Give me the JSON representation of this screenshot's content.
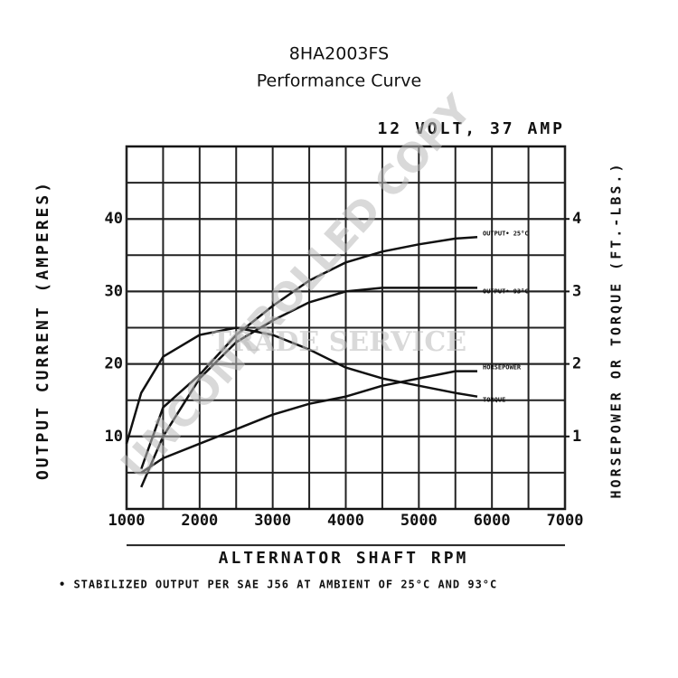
{
  "chart_data": {
    "type": "line",
    "title": "8HA2003FS",
    "subtitle": "Performance Curve",
    "rating": "12 VOLT, 37 AMP",
    "ylabel": "OUTPUT CURRENT (AMPERES)",
    "y2label": "HORSEPOWER OR TORQUE (FT.-LBS.)",
    "xlabel": "ALTERNATOR SHAFT RPM",
    "footnote": "• STABILIZED OUTPUT PER SAE J56 AT AMBIENT OF 25°C AND 93°C",
    "watermark": "UNCONTROLLED COPY",
    "watermark_logo": "TRADE SERVICE",
    "xlim": [
      1000,
      7000
    ],
    "xticks": [
      1000,
      2000,
      3000,
      4000,
      5000,
      6000,
      7000
    ],
    "ylim": [
      0,
      50
    ],
    "yticks": [
      10,
      20,
      30,
      40
    ],
    "y2lim": [
      0,
      5
    ],
    "y2ticks": [
      1,
      2,
      3,
      4
    ],
    "grid": true,
    "series": [
      {
        "name": "OUTPUT• 25°C",
        "color": "#111",
        "x": [
          1200,
          1500,
          2000,
          2500,
          3000,
          3500,
          4000,
          4500,
          5000,
          5500,
          5800
        ],
        "values": [
          5.5,
          14,
          18.5,
          24,
          28,
          31.5,
          34,
          35.5,
          36.5,
          37.3,
          37.5
        ]
      },
      {
        "name": "OUTPUT• 93°C",
        "color": "#111",
        "x": [
          1200,
          1500,
          2000,
          2500,
          3000,
          3500,
          4000,
          4500,
          5000,
          5500,
          5800
        ],
        "values": [
          3,
          10,
          18,
          23,
          26,
          28.5,
          30,
          30.5,
          30.5,
          30.5,
          30.5
        ]
      },
      {
        "name": "HORSEPOWER",
        "color": "#111",
        "axis": "y2",
        "x": [
          1200,
          1500,
          2000,
          2500,
          3000,
          3500,
          4000,
          4500,
          5000,
          5500,
          5800
        ],
        "values": [
          0.5,
          0.7,
          0.9,
          1.1,
          1.3,
          1.45,
          1.55,
          1.7,
          1.8,
          1.9,
          1.9
        ]
      },
      {
        "name": "TORQUE",
        "color": "#111",
        "axis": "y2",
        "x": [
          1000,
          1200,
          1500,
          2000,
          2500,
          3000,
          3500,
          4000,
          4500,
          5000,
          5500,
          5800
        ],
        "values": [
          0.9,
          1.6,
          2.1,
          2.4,
          2.5,
          2.4,
          2.2,
          1.95,
          1.8,
          1.7,
          1.6,
          1.55
        ]
      }
    ]
  }
}
